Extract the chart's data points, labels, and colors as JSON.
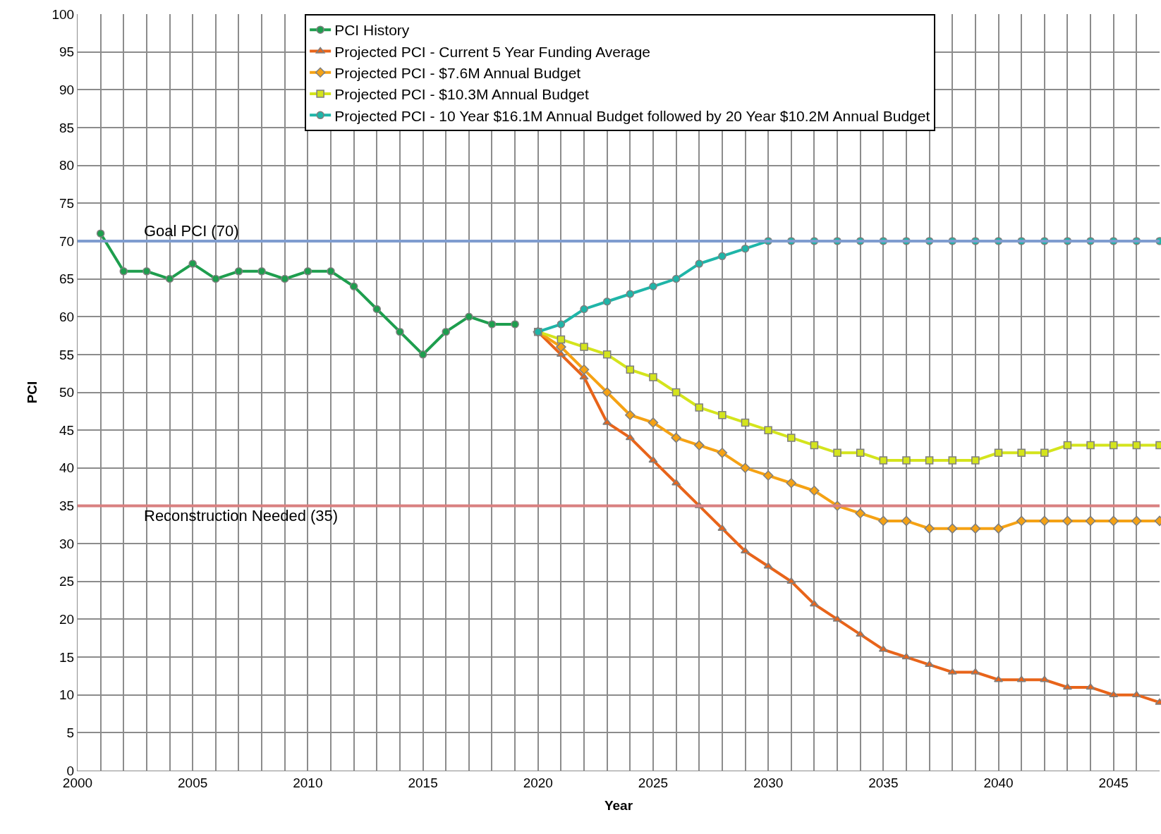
{
  "chart_data": {
    "type": "line",
    "xlabel": "Year",
    "ylabel": "PCI",
    "xlim": [
      2000,
      2047
    ],
    "ylim": [
      0,
      100
    ],
    "xticks": [
      2000,
      {
        "value": 2001,
        "label": null
      },
      {
        "value": 2002,
        "label": null
      },
      {
        "value": 2003,
        "label": null
      },
      {
        "value": 2004,
        "label": null
      },
      2005,
      {
        "value": 2006,
        "label": null
      },
      {
        "value": 2007,
        "label": null
      },
      {
        "value": 2008,
        "label": null
      },
      {
        "value": 2009,
        "label": null
      },
      2010,
      {
        "value": 2011,
        "label": null
      },
      {
        "value": 2012,
        "label": null
      },
      {
        "value": 2013,
        "label": null
      },
      {
        "value": 2014,
        "label": null
      },
      2015,
      {
        "value": 2016,
        "label": null
      },
      {
        "value": 2017,
        "label": null
      },
      {
        "value": 2018,
        "label": null
      },
      {
        "value": 2019,
        "label": null
      },
      2020,
      {
        "value": 2021,
        "label": null
      },
      {
        "value": 2022,
        "label": null
      },
      {
        "value": 2023,
        "label": null
      },
      {
        "value": 2024,
        "label": null
      },
      2025,
      {
        "value": 2026,
        "label": null
      },
      {
        "value": 2027,
        "label": null
      },
      {
        "value": 2028,
        "label": null
      },
      {
        "value": 2029,
        "label": null
      },
      2030,
      {
        "value": 2031,
        "label": null
      },
      {
        "value": 2032,
        "label": null
      },
      {
        "value": 2033,
        "label": null
      },
      {
        "value": 2034,
        "label": null
      },
      2035,
      {
        "value": 2036,
        "label": null
      },
      {
        "value": 2037,
        "label": null
      },
      {
        "value": 2038,
        "label": null
      },
      {
        "value": 2039,
        "label": null
      },
      2040,
      {
        "value": 2041,
        "label": null
      },
      {
        "value": 2042,
        "label": null
      },
      {
        "value": 2043,
        "label": null
      },
      {
        "value": 2044,
        "label": null
      },
      2045,
      {
        "value": 2046,
        "label": null
      }
    ],
    "yticks": [
      0,
      5,
      10,
      15,
      20,
      25,
      30,
      35,
      40,
      45,
      50,
      55,
      60,
      65,
      70,
      75,
      80,
      85,
      90,
      95,
      100
    ],
    "grid": true,
    "legend": "top",
    "line_style": "solid",
    "series": [
      {
        "name": "PCI History",
        "color": "#1e9e4e",
        "marker": "circle",
        "x": [
          2001,
          2002,
          2003,
          2004,
          2005,
          2006,
          2007,
          2008,
          2009,
          2010,
          2011,
          2012,
          2013,
          2014,
          2015,
          2016,
          2017,
          2018,
          2019
        ],
        "values": [
          71,
          66,
          66,
          65,
          67,
          65,
          66,
          66,
          65,
          66,
          66,
          64,
          61,
          58,
          55,
          58,
          60,
          59,
          59
        ]
      },
      {
        "name": "Projected PCI - Current 5 Year Funding Average",
        "color": "#e8641a",
        "marker": "triangle",
        "x": [
          2020,
          2021,
          2022,
          2023,
          2024,
          2025,
          2026,
          2027,
          2028,
          2029,
          2030,
          2031,
          2032,
          2033,
          2034,
          2035,
          2036,
          2037,
          2038,
          2039,
          2040,
          2041,
          2042,
          2043,
          2044,
          2045,
          2046,
          2047
        ],
        "values": [
          58,
          55,
          52,
          46,
          44,
          41,
          38,
          35,
          32,
          29,
          27,
          25,
          22,
          20,
          18,
          16,
          15,
          14,
          13,
          13,
          12,
          12,
          12,
          11,
          11,
          10,
          10,
          9
        ]
      },
      {
        "name": "Projected PCI - $7.6M Annual Budget",
        "color": "#f5a214",
        "marker": "diamond",
        "x": [
          2020,
          2021,
          2022,
          2023,
          2024,
          2025,
          2026,
          2027,
          2028,
          2029,
          2030,
          2031,
          2032,
          2033,
          2034,
          2035,
          2036,
          2037,
          2038,
          2039,
          2040,
          2041,
          2042,
          2043,
          2044,
          2045,
          2046,
          2047
        ],
        "values": [
          58,
          56,
          53,
          50,
          47,
          46,
          44,
          43,
          42,
          40,
          39,
          38,
          37,
          35,
          34,
          33,
          33,
          32,
          32,
          32,
          32,
          33,
          33,
          33,
          33,
          33,
          33,
          33
        ]
      },
      {
        "name": "Projected PCI - $10.3M Annual Budget",
        "color": "#d4e41c",
        "marker": "square",
        "x": [
          2020,
          2021,
          2022,
          2023,
          2024,
          2025,
          2026,
          2027,
          2028,
          2029,
          2030,
          2031,
          2032,
          2033,
          2034,
          2035,
          2036,
          2037,
          2038,
          2039,
          2040,
          2041,
          2042,
          2043,
          2044,
          2045,
          2046,
          2047
        ],
        "values": [
          58,
          57,
          56,
          55,
          53,
          52,
          50,
          48,
          47,
          46,
          45,
          44,
          43,
          42,
          42,
          41,
          41,
          41,
          41,
          41,
          42,
          42,
          42,
          43,
          43,
          43,
          43,
          43
        ]
      },
      {
        "name": "Projected PCI - 10 Year $16.1M Annual Budget followed by 20 Year $10.2M Annual Budget",
        "color": "#1fb5a8",
        "marker": "circle",
        "x": [
          2020,
          2021,
          2022,
          2023,
          2024,
          2025,
          2026,
          2027,
          2028,
          2029,
          2030,
          2031,
          2032,
          2033,
          2034,
          2035,
          2036,
          2037,
          2038,
          2039,
          2040,
          2041,
          2042,
          2043,
          2044,
          2045,
          2046,
          2047
        ],
        "values": [
          58,
          59,
          61,
          62,
          63,
          64,
          65,
          67,
          68,
          69,
          70,
          70,
          70,
          70,
          70,
          70,
          70,
          70,
          70,
          70,
          70,
          70,
          70,
          70,
          70,
          70,
          70,
          70
        ]
      }
    ],
    "ref_lines": [
      {
        "axis": "y",
        "value": 70,
        "label": "Goal PCI (70)",
        "color": "#7f9ccf"
      },
      {
        "axis": "y",
        "value": 35,
        "label": "Reconstruction Needed (35)",
        "color": "#d98080"
      }
    ]
  }
}
